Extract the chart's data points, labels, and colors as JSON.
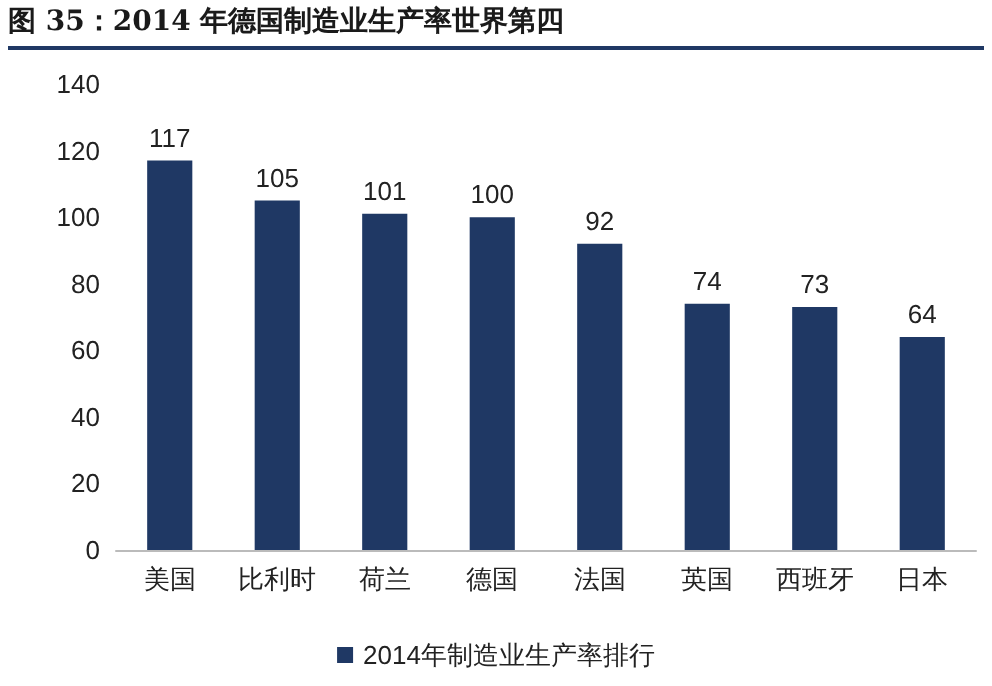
{
  "chart_data": {
    "type": "bar",
    "title": "图 35：2014 年德国制造业生产率世界第四",
    "categories": [
      "美国",
      "比利时",
      "荷兰",
      "德国",
      "法国",
      "英国",
      "西班牙",
      "日本"
    ],
    "series": [
      {
        "name": "2014年制造业生产率排行",
        "color": "#1f3864",
        "values": [
          117,
          105,
          101,
          100,
          92,
          74,
          73,
          64
        ]
      }
    ],
    "data_labels": true,
    "ylim": [
      0,
      140
    ],
    "yticks": [
      0,
      20,
      40,
      60,
      80,
      100,
      120,
      140
    ],
    "grid": false,
    "legend": "bottom"
  }
}
